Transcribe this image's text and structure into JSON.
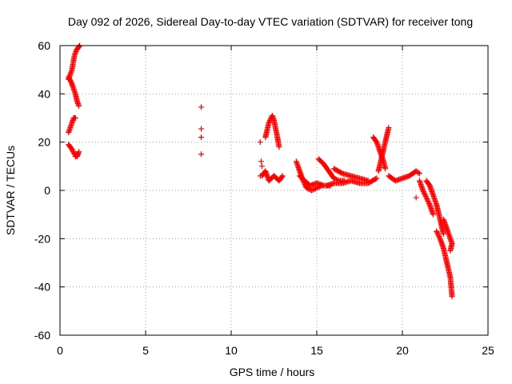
{
  "chart_data": {
    "type": "scatter",
    "title": "Day 092 of 2026, Sidereal Day-to-day VTEC variation (SDTVAR) for receiver tong",
    "xlabel": "GPS time / hours",
    "ylabel": "SDTVAR / TECUs",
    "xlim": [
      0,
      25
    ],
    "ylim": [
      -60,
      60
    ],
    "xticks": [
      0,
      5,
      10,
      15,
      20,
      25
    ],
    "yticks": [
      -60,
      -40,
      -20,
      0,
      20,
      40,
      60
    ],
    "xtick_labels": [
      "0",
      "5",
      "10",
      "15",
      "20",
      "25"
    ],
    "ytick_labels": [
      "-60",
      "-40",
      "-20",
      "0",
      "20",
      "40",
      "60"
    ],
    "grid": true,
    "marker": "+",
    "color": "#ff0000",
    "series_segments": [
      [
        [
          0.5,
          46
        ],
        [
          0.7,
          50
        ],
        [
          0.85,
          56
        ],
        [
          0.95,
          58
        ],
        [
          1.05,
          59
        ],
        [
          1.15,
          60
        ]
      ],
      [
        [
          0.5,
          47
        ],
        [
          0.65,
          45
        ],
        [
          0.8,
          42
        ],
        [
          0.9,
          40
        ],
        [
          1.0,
          37
        ],
        [
          1.1,
          35
        ]
      ],
      [
        [
          0.5,
          24
        ],
        [
          0.6,
          26
        ],
        [
          0.7,
          28
        ],
        [
          0.8,
          30
        ],
        [
          0.9,
          30
        ]
      ],
      [
        [
          0.5,
          19
        ],
        [
          0.7,
          17
        ],
        [
          0.85,
          15
        ],
        [
          1.0,
          14
        ],
        [
          1.1,
          16
        ]
      ],
      [
        [
          0.9,
          14
        ],
        [
          1.05,
          15
        ]
      ],
      [
        [
          11.8,
          6
        ],
        [
          12.0,
          8
        ],
        [
          12.2,
          4
        ],
        [
          12.5,
          6
        ],
        [
          12.8,
          4
        ],
        [
          13.0,
          6
        ]
      ],
      [
        [
          12.0,
          22
        ],
        [
          12.2,
          28
        ],
        [
          12.4,
          31
        ],
        [
          12.5,
          29
        ],
        [
          12.7,
          22
        ],
        [
          12.8,
          18
        ]
      ],
      [
        [
          13.8,
          12
        ],
        [
          14.0,
          8
        ],
        [
          14.2,
          4
        ],
        [
          14.4,
          1
        ],
        [
          14.7,
          0
        ],
        [
          15.0,
          1
        ],
        [
          15.3,
          2
        ]
      ],
      [
        [
          14.0,
          6
        ],
        [
          14.3,
          4
        ],
        [
          14.6,
          2
        ],
        [
          15.0,
          3
        ],
        [
          15.4,
          2
        ],
        [
          15.8,
          2
        ]
      ],
      [
        [
          15.1,
          13
        ],
        [
          15.4,
          11
        ],
        [
          15.7,
          8
        ],
        [
          16.0,
          5
        ],
        [
          16.3,
          4
        ],
        [
          16.6,
          4
        ]
      ],
      [
        [
          15.6,
          2
        ],
        [
          16.0,
          3
        ],
        [
          16.5,
          3
        ],
        [
          17.0,
          4
        ],
        [
          17.5,
          3
        ],
        [
          18.0,
          3
        ],
        [
          18.5,
          5
        ]
      ],
      [
        [
          16.0,
          9
        ],
        [
          16.5,
          7
        ],
        [
          17.0,
          6
        ],
        [
          17.5,
          5
        ],
        [
          18.0,
          4
        ]
      ],
      [
        [
          18.3,
          22
        ],
        [
          18.5,
          20
        ],
        [
          18.7,
          16
        ],
        [
          18.9,
          12
        ],
        [
          19.0,
          9
        ]
      ],
      [
        [
          18.6,
          8
        ],
        [
          18.8,
          14
        ],
        [
          19.0,
          20
        ],
        [
          19.2,
          26
        ]
      ],
      [
        [
          19.2,
          6
        ],
        [
          19.6,
          4
        ],
        [
          20.0,
          5
        ],
        [
          20.4,
          6
        ],
        [
          20.8,
          8
        ],
        [
          21.0,
          7
        ]
      ],
      [
        [
          21.0,
          4
        ],
        [
          21.2,
          0
        ],
        [
          21.4,
          -3
        ],
        [
          21.6,
          -6
        ],
        [
          21.8,
          -10
        ]
      ],
      [
        [
          21.4,
          4
        ],
        [
          21.6,
          2
        ],
        [
          21.8,
          -2
        ],
        [
          22.0,
          -6
        ],
        [
          22.2,
          -12
        ],
        [
          22.4,
          -18
        ]
      ],
      [
        [
          22.0,
          -17
        ],
        [
          22.2,
          -20
        ],
        [
          22.4,
          -24
        ],
        [
          22.6,
          -30
        ],
        [
          22.8,
          -36
        ],
        [
          22.9,
          -44
        ]
      ],
      [
        [
          22.4,
          -12
        ],
        [
          22.6,
          -16
        ],
        [
          22.8,
          -20
        ],
        [
          22.9,
          -22
        ],
        [
          22.8,
          -25
        ]
      ]
    ],
    "isolated_points": [
      [
        8.25,
        34.5
      ],
      [
        8.25,
        25.5
      ],
      [
        8.25,
        22
      ],
      [
        8.25,
        15
      ],
      [
        11.7,
        20
      ],
      [
        11.75,
        12
      ],
      [
        11.8,
        10
      ],
      [
        11.7,
        6
      ],
      [
        20.8,
        -3
      ],
      [
        22.0,
        -17
      ]
    ]
  }
}
